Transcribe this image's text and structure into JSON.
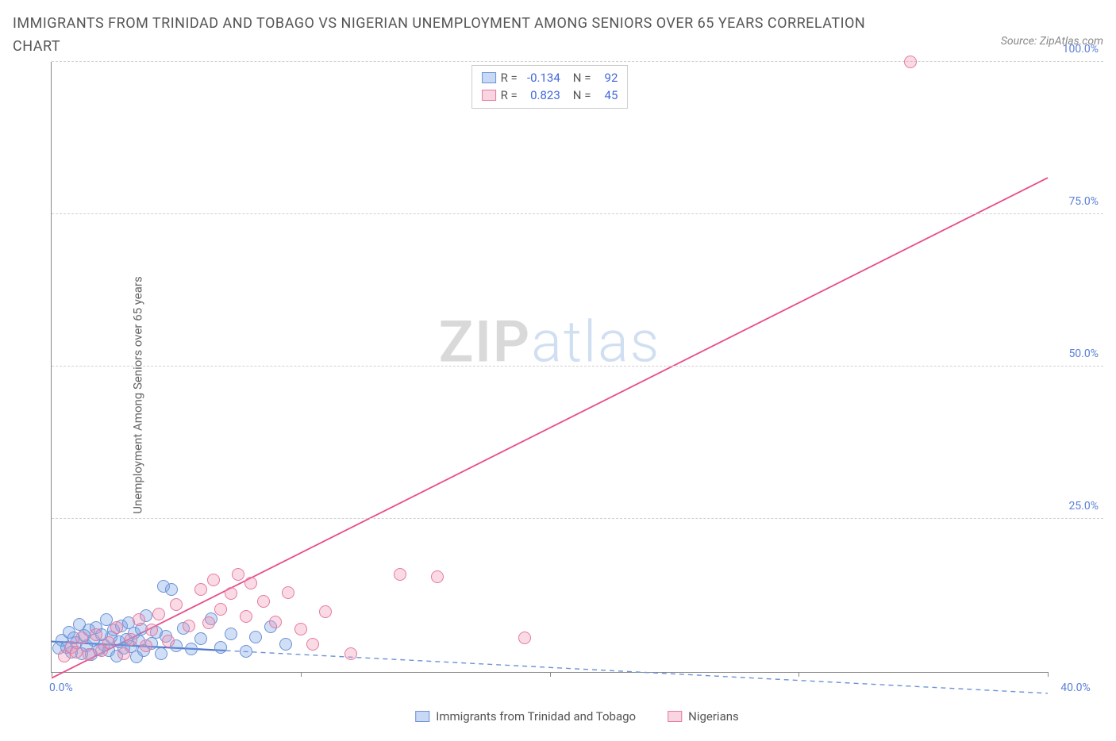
{
  "title": "IMMIGRANTS FROM TRINIDAD AND TOBAGO VS NIGERIAN UNEMPLOYMENT AMONG SENIORS OVER 65 YEARS CORRELATION CHART",
  "source": "Source: ZipAtlas.com",
  "watermark": {
    "a": "ZIP",
    "b": "atlas"
  },
  "y_axis_label": "Unemployment Among Seniors over 65 years",
  "chart": {
    "type": "scatter",
    "xlim": [
      0,
      40
    ],
    "ylim": [
      0,
      100
    ],
    "background_color": "#ffffff",
    "grid_color": "#d0d0d0",
    "axis_color": "#888888",
    "tick_label_color": "#5b7fd9",
    "x_ticks": [
      0,
      10,
      20,
      30,
      40
    ],
    "x_tick_labels": [
      "0.0%",
      "",
      "",
      "",
      "40.0%"
    ],
    "y_gridlines": [
      25,
      50,
      75,
      100
    ],
    "y_tick_labels": [
      "25.0%",
      "50.0%",
      "75.0%",
      "100.0%"
    ],
    "point_radius": 8,
    "series": [
      {
        "name": "Immigrants from Trinidad and Tobago",
        "fill": "rgba(120,160,230,0.35)",
        "stroke": "#6b93d6",
        "line_solid_color": "#4f79c9",
        "line_dash_color": "#6b93d6",
        "regression": {
          "x1": 0,
          "y1": 5.0,
          "x2": 7,
          "y2": 3.5,
          "x3": 40,
          "y3": -3.5
        },
        "points": [
          [
            0.3,
            3.8
          ],
          [
            0.4,
            5.2
          ],
          [
            0.6,
            4.0
          ],
          [
            0.7,
            6.5
          ],
          [
            0.8,
            3.2
          ],
          [
            0.9,
            5.5
          ],
          [
            1.0,
            4.7
          ],
          [
            1.1,
            7.8
          ],
          [
            1.2,
            3.0
          ],
          [
            1.3,
            5.9
          ],
          [
            1.4,
            4.2
          ],
          [
            1.5,
            6.8
          ],
          [
            1.6,
            2.8
          ],
          [
            1.7,
            5.1
          ],
          [
            1.8,
            7.2
          ],
          [
            1.9,
            3.6
          ],
          [
            2.0,
            6.0
          ],
          [
            2.1,
            4.4
          ],
          [
            2.2,
            8.5
          ],
          [
            2.3,
            3.4
          ],
          [
            2.4,
            5.7
          ],
          [
            2.5,
            6.9
          ],
          [
            2.6,
            2.6
          ],
          [
            2.7,
            4.9
          ],
          [
            2.8,
            7.5
          ],
          [
            2.9,
            3.8
          ],
          [
            3.0,
            5.3
          ],
          [
            3.1,
            8.0
          ],
          [
            3.2,
            4.1
          ],
          [
            3.3,
            6.3
          ],
          [
            3.4,
            2.4
          ],
          [
            3.5,
            5.0
          ],
          [
            3.6,
            7.0
          ],
          [
            3.7,
            3.5
          ],
          [
            3.8,
            9.2
          ],
          [
            4.0,
            4.6
          ],
          [
            4.2,
            6.5
          ],
          [
            4.4,
            3.0
          ],
          [
            4.5,
            14.0
          ],
          [
            4.6,
            5.8
          ],
          [
            4.8,
            13.5
          ],
          [
            5.0,
            4.3
          ],
          [
            5.3,
            7.1
          ],
          [
            5.6,
            3.7
          ],
          [
            6.0,
            5.4
          ],
          [
            6.4,
            8.6
          ],
          [
            6.8,
            4.0
          ],
          [
            7.2,
            6.2
          ],
          [
            7.8,
            3.3
          ],
          [
            8.2,
            5.7
          ],
          [
            8.8,
            7.4
          ],
          [
            9.4,
            4.5
          ]
        ]
      },
      {
        "name": "Nigerians",
        "fill": "rgba(240,150,180,0.35)",
        "stroke": "#e57aa0",
        "line_solid_color": "#e84c88",
        "regression": {
          "x1": 0,
          "y1": -1.0,
          "x2": 40,
          "y2": 81.0
        },
        "points": [
          [
            0.5,
            2.5
          ],
          [
            0.8,
            4.0
          ],
          [
            1.0,
            3.2
          ],
          [
            1.2,
            5.5
          ],
          [
            1.5,
            2.8
          ],
          [
            1.8,
            6.0
          ],
          [
            2.0,
            3.5
          ],
          [
            2.3,
            4.8
          ],
          [
            2.6,
            7.2
          ],
          [
            2.9,
            3.0
          ],
          [
            3.2,
            5.3
          ],
          [
            3.5,
            8.5
          ],
          [
            3.8,
            4.2
          ],
          [
            4.0,
            6.8
          ],
          [
            4.3,
            9.5
          ],
          [
            4.7,
            5.0
          ],
          [
            5.0,
            11.0
          ],
          [
            5.5,
            7.5
          ],
          [
            6.0,
            13.5
          ],
          [
            6.3,
            8.0
          ],
          [
            6.5,
            15.0
          ],
          [
            6.8,
            10.2
          ],
          [
            7.2,
            12.8
          ],
          [
            7.5,
            16.0
          ],
          [
            7.8,
            9.0
          ],
          [
            8.0,
            14.5
          ],
          [
            8.5,
            11.5
          ],
          [
            9.0,
            8.2
          ],
          [
            9.5,
            13.0
          ],
          [
            10.0,
            7.0
          ],
          [
            10.5,
            4.5
          ],
          [
            11.0,
            9.8
          ],
          [
            12.0,
            3.0
          ],
          [
            14.0,
            16.0
          ],
          [
            15.5,
            15.5
          ],
          [
            19.0,
            5.5
          ],
          [
            34.5,
            100.0
          ]
        ]
      }
    ]
  },
  "stats_legend": {
    "rows": [
      {
        "swatch_fill": "rgba(120,160,230,0.4)",
        "swatch_stroke": "#6b93d6",
        "r_label": "R =",
        "r": "-0.134",
        "n_label": "N =",
        "n": "92"
      },
      {
        "swatch_fill": "rgba(240,150,180,0.4)",
        "swatch_stroke": "#e57aa0",
        "r_label": "R =",
        "r": "0.823",
        "n_label": "N =",
        "n": "45"
      }
    ]
  },
  "bottom_legend": [
    {
      "swatch_fill": "rgba(120,160,230,0.4)",
      "swatch_stroke": "#6b93d6",
      "label": "Immigrants from Trinidad and Tobago"
    },
    {
      "swatch_fill": "rgba(240,150,180,0.4)",
      "swatch_stroke": "#e57aa0",
      "label": "Nigerians"
    }
  ]
}
